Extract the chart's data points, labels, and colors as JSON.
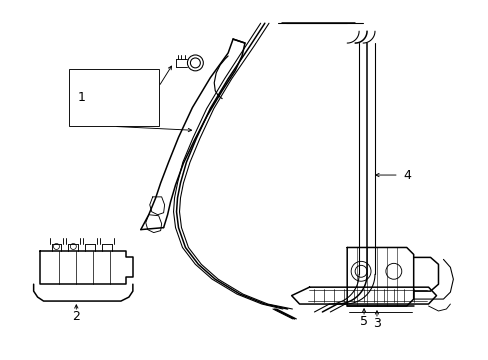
{
  "bg_color": "#ffffff",
  "line_color": "#000000",
  "lw_main": 1.1,
  "lw_thin": 0.65,
  "fig_width": 4.89,
  "fig_height": 3.6,
  "dpi": 100
}
